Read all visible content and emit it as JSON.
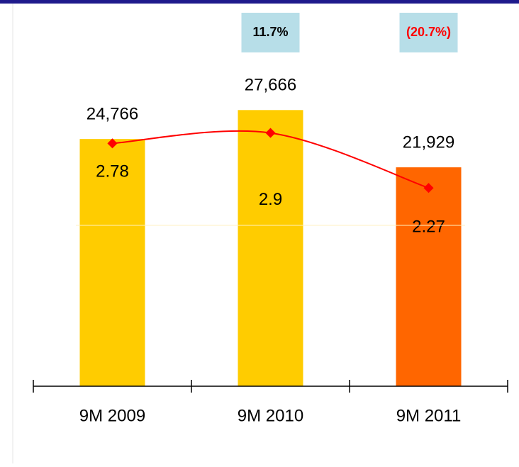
{
  "chart_data": {
    "type": "bar",
    "categories": [
      "9M 2009",
      "9M 2010",
      "9M 2011"
    ],
    "series": [
      {
        "values": [
          24766,
          27666,
          21929
        ],
        "value_labels": [
          "24,766",
          "27,666",
          "21,929"
        ],
        "colors": [
          "#FFCC00",
          "#FFCC00",
          "#FF6600"
        ]
      },
      {
        "type": "line",
        "axis": "y2",
        "values": [
          2.78,
          2.9,
          2.27
        ],
        "color": "#FF0000"
      }
    ],
    "annotations": [
      {
        "text": "11.7%",
        "category": 1,
        "color": "#000000"
      },
      {
        "text": "(20.7%)",
        "category": 2,
        "color": "#FF0000"
      }
    ],
    "ylim": [
      0,
      35000
    ],
    "y2lim": [
      0,
      4
    ],
    "grid": false
  }
}
